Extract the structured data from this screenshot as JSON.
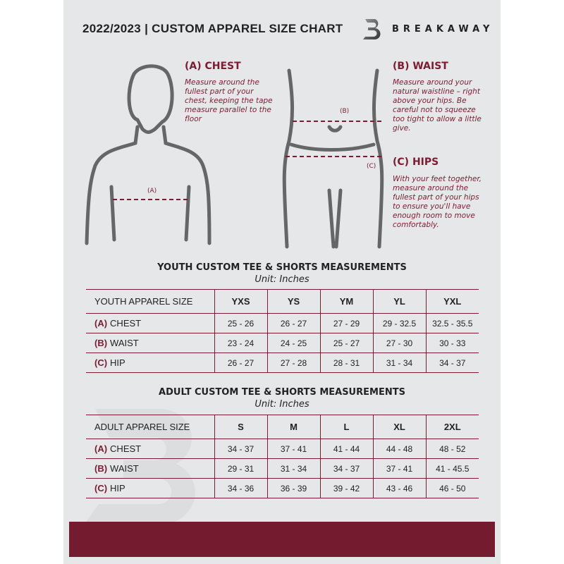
{
  "header": {
    "title": "2022/2023  |  CUSTOM APPAREL SIZE CHART",
    "brand": "BREAKAWAY",
    "watermark": "B"
  },
  "guide": {
    "chest": {
      "label": "(A) CHEST",
      "marker": "(A)",
      "text": "Measure around the fullest part of your chest, keeping the tape measure parallel to the floor"
    },
    "waist": {
      "label": "(B) WAIST",
      "marker": "(B)",
      "text": "Measure around your natural waistline – right above your hips. Be careful not to squeeze too tight to allow a little give."
    },
    "hips": {
      "label": "(C) HIPS",
      "marker": "(C)",
      "text": "With your feet together, measure around the fullest part of your hips to ensure you'll have enough room to move comfortably."
    }
  },
  "youth": {
    "title": "YOUTH CUSTOM TEE & SHORTS MEASUREMENTS",
    "unit": "Unit: Inches",
    "header": "YOUTH APPAREL SIZE",
    "sizes": [
      "YXS",
      "YS",
      "YM",
      "YL",
      "YXL"
    ],
    "rows": [
      {
        "code": "(A)",
        "name": "CHEST",
        "values": [
          "25 - 26",
          "26 - 27",
          "27 - 29",
          "29 - 32.5",
          "32.5 - 35.5"
        ]
      },
      {
        "code": "(B)",
        "name": "WAIST",
        "values": [
          "23 - 24",
          "24 - 25",
          "25 - 27",
          "27 - 30",
          "30 - 33"
        ]
      },
      {
        "code": "(C)",
        "name": "HIP",
        "values": [
          "26 - 27",
          "27 - 28",
          "28 - 31",
          "31 - 34",
          "34 - 37"
        ]
      }
    ]
  },
  "adult": {
    "title": "ADULT CUSTOM TEE & SHORTS MEASUREMENTS",
    "unit": "Unit: Inches",
    "header": "ADULT APPAREL SIZE",
    "sizes": [
      "S",
      "M",
      "L",
      "XL",
      "2XL"
    ],
    "rows": [
      {
        "code": "(A)",
        "name": "CHEST",
        "values": [
          "34 - 37",
          "37 - 41",
          "41 - 44",
          "44 - 48",
          "48 - 52"
        ]
      },
      {
        "code": "(B)",
        "name": "WAIST",
        "values": [
          "29 - 31",
          "31 - 34",
          "34 - 37",
          "37 - 41",
          "41 - 45.5"
        ]
      },
      {
        "code": "(C)",
        "name": "HIP",
        "values": [
          "34 - 36",
          "36 - 39",
          "39 - 42",
          "43 - 46",
          "46 - 50"
        ]
      }
    ]
  },
  "colors": {
    "accent": "#7a1c32",
    "panel": "#e6e7e8"
  }
}
